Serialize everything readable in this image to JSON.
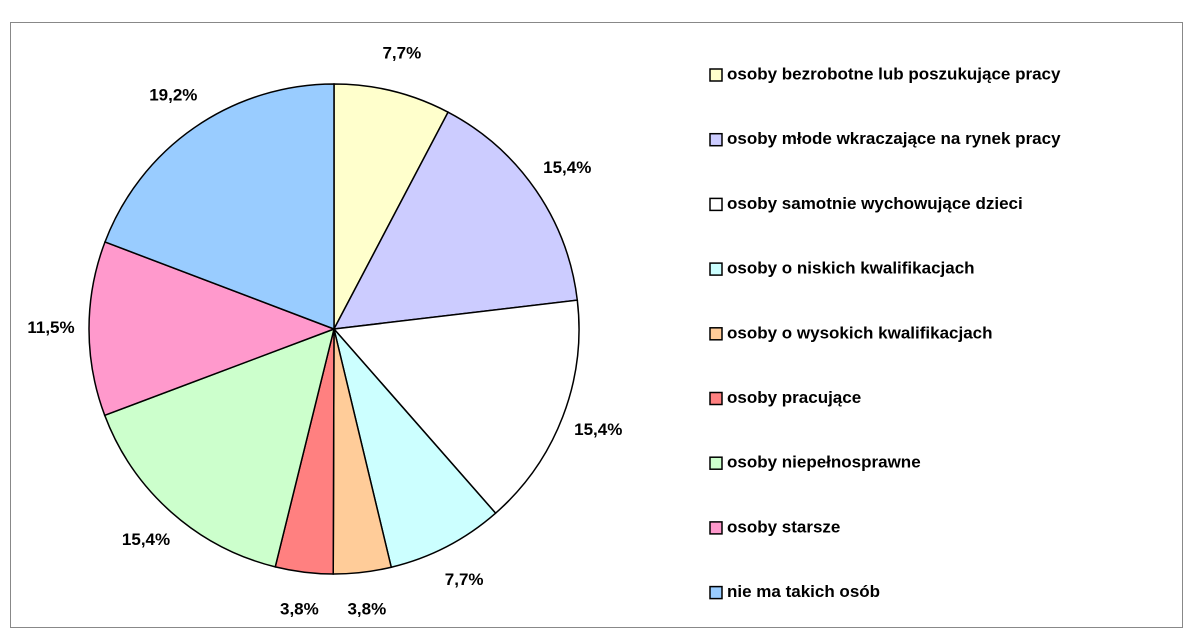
{
  "chart_data": {
    "type": "pie",
    "categories": [
      "osoby bezrobotne lub poszukujące pracy",
      "osoby młode wkraczające na rynek pracy",
      "osoby samotnie wychowujące dzieci",
      "osoby o niskich kwalifikacjach",
      "osoby o wysokich kwalifikacjach",
      "osoby pracujące",
      "osoby niepełnosprawne",
      "osoby starsze",
      "nie ma takich osób"
    ],
    "values": [
      7.7,
      15.4,
      15.4,
      7.7,
      3.8,
      3.8,
      15.4,
      11.5,
      19.2
    ],
    "value_labels": [
      "7,7%",
      "15,4%",
      "15,4%",
      "7,7%",
      "3,8%",
      "3,8%",
      "15,4%",
      "11,5%",
      "19,2%"
    ],
    "colors": [
      "#ffffcc",
      "#ccccff",
      "#ffffff",
      "#ccffff",
      "#ffcc99",
      "#ff8080",
      "#ccffcc",
      "#ff99cc",
      "#99ccff"
    ],
    "legend": "right"
  }
}
